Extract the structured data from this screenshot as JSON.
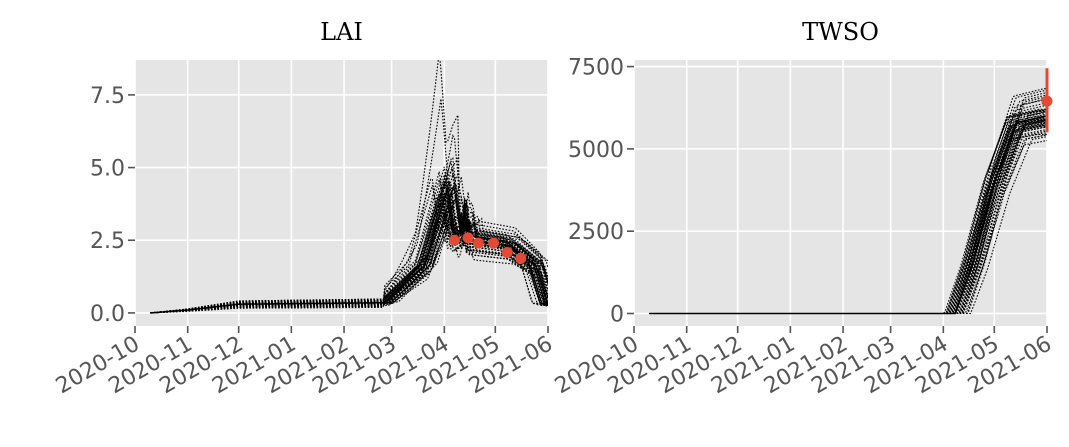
{
  "chart_data": [
    {
      "type": "line",
      "title": "LAI",
      "xlabel": "",
      "ylabel": "",
      "x_type": "date",
      "xlim": [
        "2020-10-01",
        "2021-06-01"
      ],
      "ylim": [
        -0.45,
        8.7
      ],
      "x_ticks": [
        "2020-10",
        "2020-11",
        "2020-12",
        "2021-01",
        "2021-02",
        "2021-03",
        "2021-04",
        "2021-05",
        "2021-06"
      ],
      "y_ticks": [
        0.0,
        2.5,
        5.0,
        7.5
      ],
      "y_tick_labels": [
        "0.0",
        "2.5",
        "5.0",
        "7.5"
      ],
      "grid": true,
      "ensemble": {
        "member_count": 50,
        "style": "dotted-black",
        "median_key_points": [
          {
            "x": "2020-10-10",
            "y": 0.0
          },
          {
            "x": "2020-11-01",
            "y": 0.1
          },
          {
            "x": "2020-12-01",
            "y": 0.3
          },
          {
            "x": "2021-02-25",
            "y": 0.35
          },
          {
            "x": "2021-03-20",
            "y": 1.6
          },
          {
            "x": "2021-04-03",
            "y": 4.3
          },
          {
            "x": "2021-04-07",
            "y": 2.6
          },
          {
            "x": "2021-04-15",
            "y": 3.0
          },
          {
            "x": "2021-04-16",
            "y": 2.5
          },
          {
            "x": "2021-05-10",
            "y": 2.3
          },
          {
            "x": "2021-05-25",
            "y": 1.6
          },
          {
            "x": "2021-06-01",
            "y": 0.3
          }
        ]
      },
      "observations": {
        "color": "#E24A33",
        "points": [
          {
            "x": "2021-04-07",
            "y": 2.5
          },
          {
            "x": "2021-04-15",
            "y": 2.58
          },
          {
            "x": "2021-04-21",
            "y": 2.4
          },
          {
            "x": "2021-04-30",
            "y": 2.4
          },
          {
            "x": "2021-05-08",
            "y": 2.08
          },
          {
            "x": "2021-05-16",
            "y": 1.88
          }
        ]
      }
    },
    {
      "type": "line",
      "title": "TWSO",
      "xlabel": "",
      "ylabel": "",
      "x_type": "date",
      "xlim": [
        "2020-10-01",
        "2021-06-01"
      ],
      "ylim": [
        -380,
        7700
      ],
      "x_ticks": [
        "2020-10",
        "2020-11",
        "2020-12",
        "2021-01",
        "2021-02",
        "2021-03",
        "2021-04",
        "2021-05",
        "2021-06"
      ],
      "y_ticks": [
        0,
        2500,
        5000,
        7500
      ],
      "y_tick_labels": [
        "0",
        "2500",
        "5000",
        "7500"
      ],
      "grid": true,
      "ensemble": {
        "member_count": 50,
        "style": "dotted-black",
        "median_key_points": [
          {
            "x": "2020-10-10",
            "y": 0
          },
          {
            "x": "2021-04-08",
            "y": 0
          },
          {
            "x": "2021-04-18",
            "y": 1500
          },
          {
            "x": "2021-05-01",
            "y": 4000
          },
          {
            "x": "2021-05-14",
            "y": 5800
          },
          {
            "x": "2021-06-01",
            "y": 6000
          }
        ]
      },
      "observations": {
        "color": "#E24A33",
        "points": [
          {
            "x": "2021-06-01",
            "y": 6450,
            "error": [
              5500,
              7450
            ]
          }
        ]
      }
    }
  ]
}
